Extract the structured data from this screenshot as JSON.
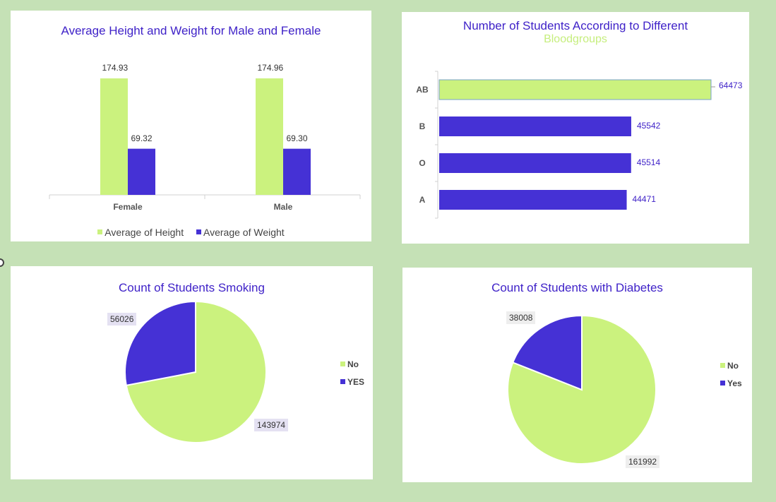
{
  "colors": {
    "green": "#cbf27e",
    "purple": "#4531d5",
    "title": "#3f22c8",
    "background": "#c5e1b6"
  },
  "chart_data": [
    {
      "type": "bar",
      "title": "Average Height and Weight for Male and Female",
      "categories": [
        "Female",
        "Male"
      ],
      "series": [
        {
          "name": "Average of Height",
          "values": [
            174.93,
            174.96
          ],
          "value_labels": [
            "174.93",
            "174.96"
          ]
        },
        {
          "name": "Average of Weight",
          "values": [
            69.32,
            69.3
          ],
          "value_labels": [
            "69.32",
            "69.30"
          ]
        }
      ],
      "legend": "bottom",
      "grid": false
    },
    {
      "type": "bar",
      "orientation": "horizontal",
      "title": "Number of Students According to Different",
      "subtitle": "Bloodgroups",
      "categories": [
        "AB",
        "B",
        "O",
        "A"
      ],
      "values": [
        64473,
        45542,
        45514,
        44471
      ],
      "grid": false
    },
    {
      "type": "pie",
      "title": "Count of Students Smoking",
      "categories": [
        "No",
        "YES"
      ],
      "values": [
        143974,
        56026
      ],
      "legend": "right"
    },
    {
      "type": "pie",
      "title": "Count of Students with Diabetes",
      "categories": [
        "No",
        "Yes"
      ],
      "values": [
        161992,
        38008
      ],
      "legend": "right"
    }
  ]
}
